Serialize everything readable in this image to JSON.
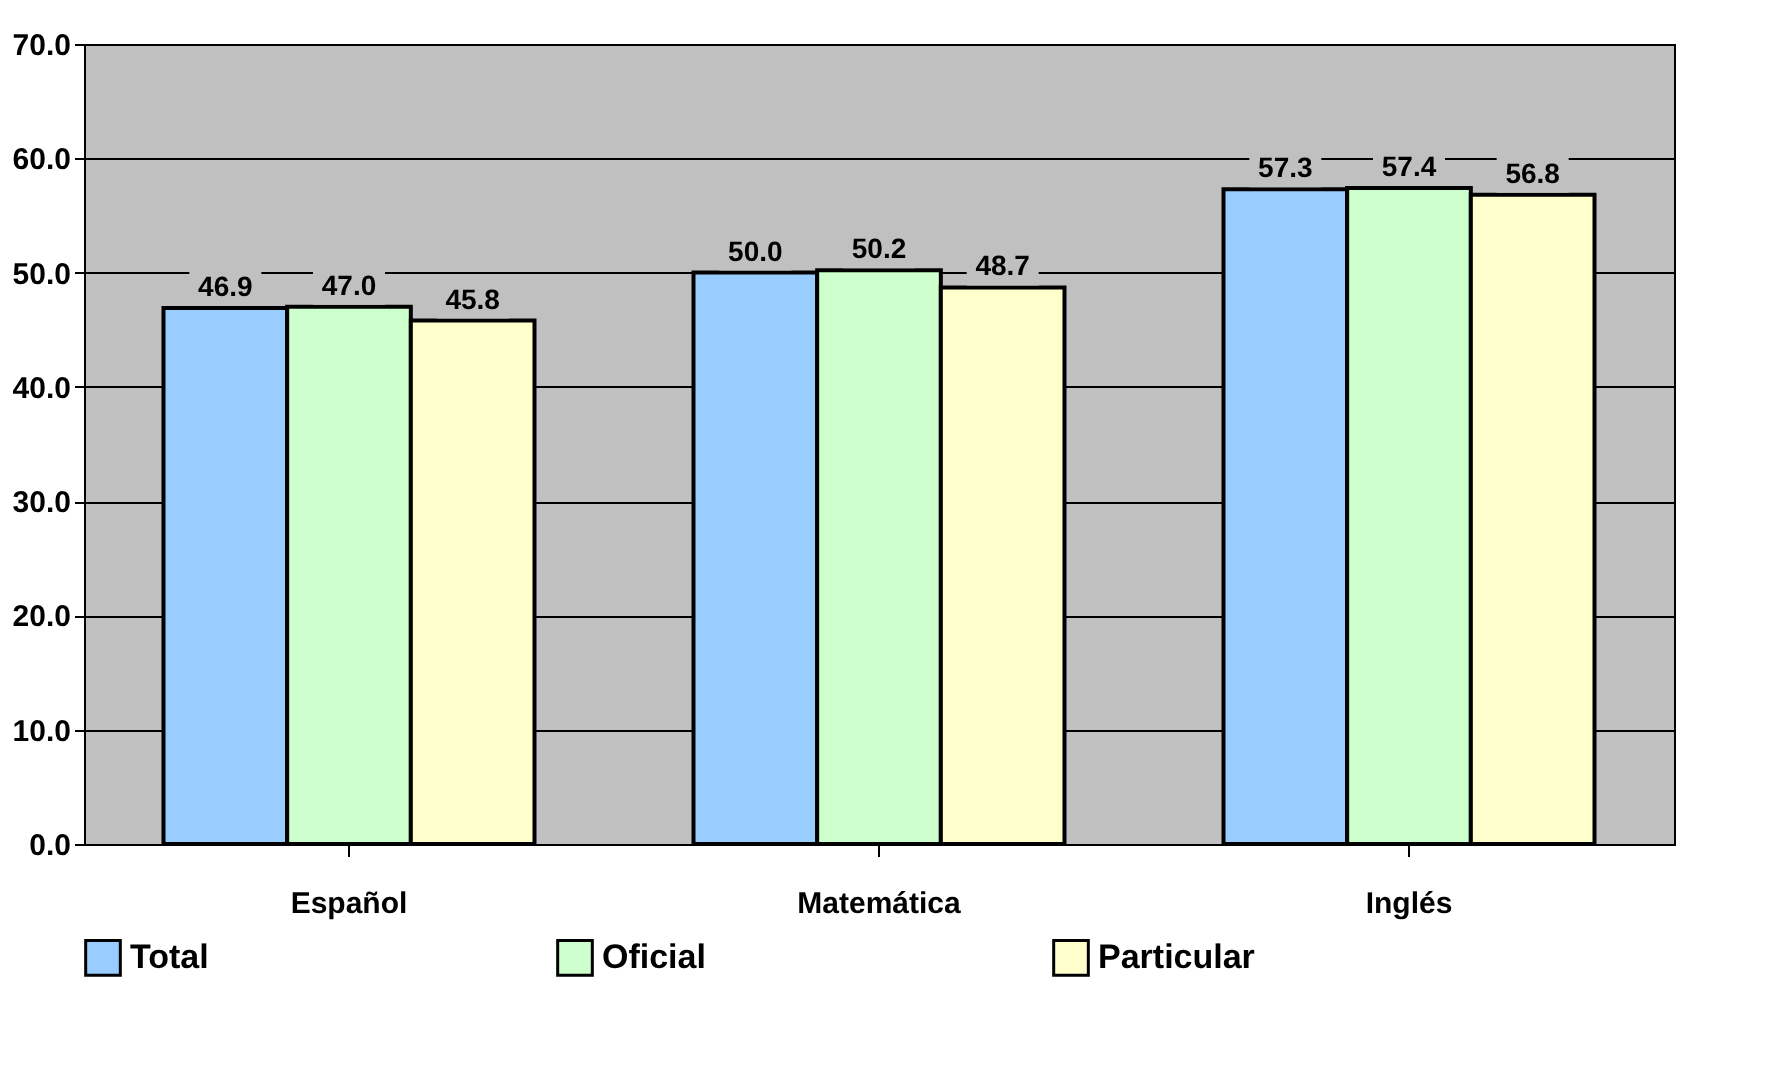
{
  "chart_data": {
    "type": "bar",
    "categories": [
      "Español",
      "Matemática",
      "Inglés"
    ],
    "series": [
      {
        "name": "Total",
        "color": "#99ccff",
        "values": [
          46.9,
          50.0,
          57.3
        ],
        "value_labels": [
          "46.9",
          "50.0",
          "57.3"
        ]
      },
      {
        "name": "Oficial",
        "color": "#ccffcc",
        "values": [
          47.0,
          50.2,
          57.4
        ],
        "value_labels": [
          "47.0",
          "50.2",
          "57.4"
        ]
      },
      {
        "name": "Particular",
        "color": "#ffffcc",
        "values": [
          45.8,
          48.7,
          56.8
        ],
        "value_labels": [
          "45.8",
          "48.7",
          "56.8"
        ]
      }
    ],
    "ylim": [
      0,
      70
    ],
    "yticks": [
      {
        "value": 0,
        "label": "0.0"
      },
      {
        "value": 10,
        "label": "10.0"
      },
      {
        "value": 20,
        "label": "20.0"
      },
      {
        "value": 30,
        "label": "30.0"
      },
      {
        "value": 40,
        "label": "40.0"
      },
      {
        "value": 50,
        "label": "50.0"
      },
      {
        "value": 60,
        "label": "60.0"
      },
      {
        "value": 70,
        "label": "70.0"
      }
    ],
    "grid": "y",
    "legend": "bottom"
  }
}
